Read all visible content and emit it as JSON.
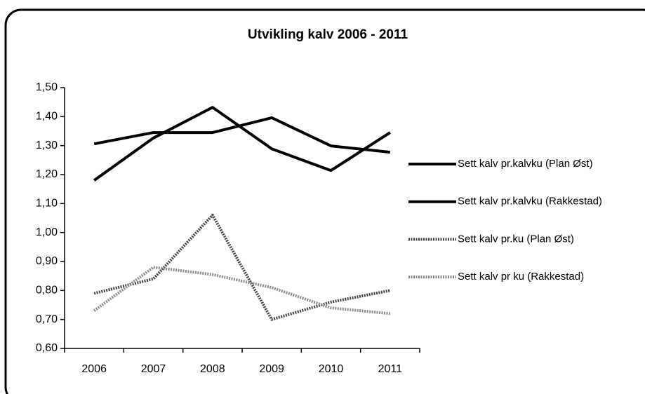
{
  "chart_data": {
    "type": "line",
    "title": "Utvikling kalv 2006 - 2011",
    "categories": [
      "2006",
      "2007",
      "2008",
      "2009",
      "2010",
      "2011"
    ],
    "series": [
      {
        "name": "Sett kalv pr.kalvku (Plan Øst)",
        "color": "#000000",
        "dash": false,
        "values": [
          1.306,
          1.345,
          1.345,
          1.396,
          1.299,
          1.277
        ]
      },
      {
        "name": "Sett kalv pr.kalvku (Rakkestad)",
        "color": "#000000",
        "dash": false,
        "values": [
          1.18,
          1.326,
          1.432,
          1.289,
          1.214,
          1.345
        ]
      },
      {
        "name": "Sett kalv pr.ku (Plan Øst)",
        "color": "#444444",
        "dash": true,
        "values": [
          0.79,
          0.84,
          1.06,
          0.7,
          0.76,
          0.8
        ]
      },
      {
        "name": "Sett kalv pr ku (Rakkestad)",
        "color": "#8a8a8a",
        "dash": true,
        "values": [
          0.73,
          0.88,
          0.855,
          0.81,
          0.74,
          0.72
        ]
      }
    ],
    "ylim": [
      0.6,
      1.5
    ],
    "yticks": [
      {
        "value": 0.6,
        "label": "0,60"
      },
      {
        "value": 0.7,
        "label": "0,70"
      },
      {
        "value": 0.8,
        "label": "0,80"
      },
      {
        "value": 0.9,
        "label": "0,90"
      },
      {
        "value": 1.0,
        "label": "1,00"
      },
      {
        "value": 1.1,
        "label": "1,10"
      },
      {
        "value": 1.2,
        "label": "1,20"
      },
      {
        "value": 1.3,
        "label": "1,30"
      },
      {
        "value": 1.4,
        "label": "1,40"
      },
      {
        "value": 1.5,
        "label": "1,50"
      }
    ],
    "legend": "right"
  }
}
